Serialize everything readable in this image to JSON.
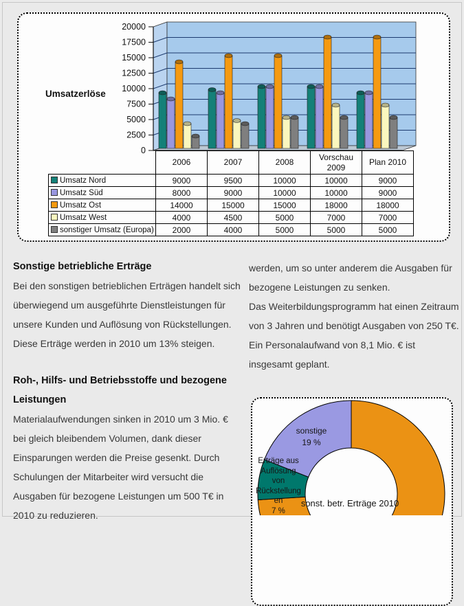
{
  "chart_data": [
    {
      "type": "bar",
      "style": "3d-cylinder",
      "title": "Umsatzerlöse",
      "categories": [
        "2006",
        "2007",
        "2008",
        "Vorschau 2009",
        "Plan 2010"
      ],
      "series": [
        {
          "name": "Umsatz Nord",
          "color": "#148078",
          "values": [
            9000,
            9500,
            10000,
            10000,
            9000
          ]
        },
        {
          "name": "Umsatz Süd",
          "color": "#9997DF",
          "values": [
            8000,
            9000,
            10000,
            10000,
            9000
          ]
        },
        {
          "name": "Umsatz Ost",
          "color": "#F59A11",
          "values": [
            14000,
            15000,
            15000,
            18000,
            18000
          ]
        },
        {
          "name": "Umsatz West",
          "color": "#FAF7BE",
          "values": [
            4000,
            4500,
            5000,
            7000,
            7000
          ]
        },
        {
          "name": "sonstiger Umsatz (Europa)",
          "color": "#7F7F7F",
          "values": [
            2000,
            4000,
            5000,
            5000,
            5000
          ]
        }
      ],
      "ylim": [
        0,
        20000
      ],
      "yticks": [
        0,
        2500,
        5000,
        7500,
        10000,
        12500,
        15000,
        17500,
        20000
      ],
      "grid": true,
      "plot_bg": "#A6CAEC",
      "wall_color": "#BAD4F0",
      "floor_color": "#BCC8D4",
      "grid_color": "#1C3A6E",
      "legend_position": "table-left"
    },
    {
      "type": "pie",
      "subtype": "donut",
      "title": "sonst. betr. Erträge 2010",
      "start": "top",
      "direction": "clockwise",
      "slices": [
        {
          "label": "",
          "pct": "",
          "value": 74,
          "color": "#EB9214",
          "label_visible": false
        },
        {
          "label": "Erträge aus Auflösung von Rückstellungen",
          "pct": "7 %",
          "value": 7,
          "color": "#00786C",
          "label_visible": true
        },
        {
          "label": "sonstige",
          "pct": "19 %",
          "value": 19,
          "color": "#9A99E2",
          "label_visible": true
        }
      ]
    }
  ],
  "sections": {
    "s1": {
      "heading": "Sonstige betriebliche Erträge",
      "body": "Bei den sonstigen betrieblichen Erträgen handelt sich überwiegend um ausgeführte Dienstleistungen für unsere Kunden und Auflösung von Rückstellungen. Diese Erträge werden in 2010 um 13% steigen."
    },
    "right": {
      "paragraphs": [
        "werden, um so unter anderem die Ausgaben für bezogene Leistungen zu senken.",
        "Das Weiterbildungsprogramm hat einen Zeitraum von 3 Jahren und benötigt Ausgaben von 250 T€.",
        "Ein Personalaufwand von 8,1 Mio. € ist insgesamt geplant."
      ]
    },
    "s2": {
      "heading": "Roh-, Hilfs- und Betriebsstoffe und bezogene Leistungen",
      "body": "Materialaufwendungen sinken in 2010 um 3 Mio. € bei gleich bleibendem Volumen, dank dieser Einsparungen werden die Preise gesenkt. Durch Schulungen der Mitarbeiter wird versucht die Ausgaben für bezogene Leistungen um 500 T€ in 2010 zu reduzieren."
    }
  }
}
